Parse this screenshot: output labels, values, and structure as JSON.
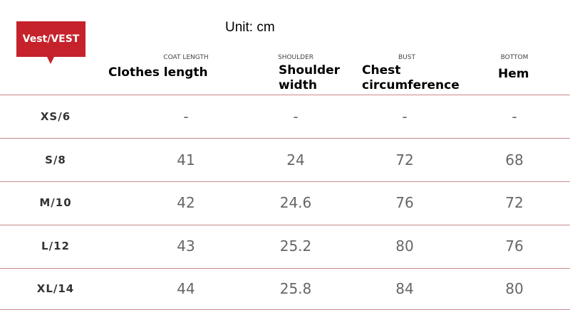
{
  "badge": "Vest/VEST",
  "unit": "Unit: cm",
  "columns": [
    {
      "en": "COAT LENGTH",
      "label": "Clothes length"
    },
    {
      "en": "SHOULDER",
      "label": "Shoulder width"
    },
    {
      "en": "BUST",
      "label": "Chest circumference"
    },
    {
      "en": "BOTTOM",
      "label": "Hem"
    }
  ],
  "rows": [
    {
      "size": "XS/6",
      "values": [
        "-",
        "-",
        "-",
        "-"
      ]
    },
    {
      "size": "S/8",
      "values": [
        "41",
        "24",
        "72",
        "68"
      ]
    },
    {
      "size": "M/10",
      "values": [
        "42",
        "24.6",
        "76",
        "72"
      ]
    },
    {
      "size": "L/12",
      "values": [
        "43",
        "25.2",
        "80",
        "76"
      ]
    },
    {
      "size": "XL/14",
      "values": [
        "44",
        "25.8",
        "84",
        "80"
      ]
    }
  ],
  "colors": {
    "accent": "#c6222c",
    "divider": "#c8898b"
  }
}
